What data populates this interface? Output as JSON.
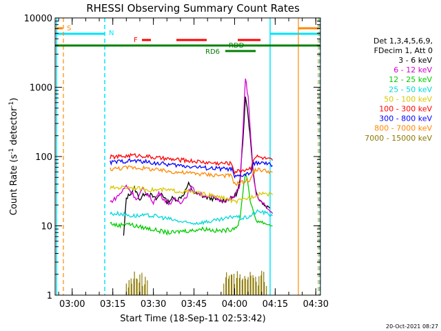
{
  "chart_data": {
    "type": "line",
    "title": "RHESSI Observing Summary Count Rates",
    "xlabel": "Start Time (18-Sep-11 02:53:42)",
    "ylabel_main": "Count Rate (s",
    "ylabel_sup1": "-1",
    "ylabel_mid": " detector",
    "ylabel_sup2": "-1",
    "ylabel_end": ")",
    "y_scale": "log",
    "ylim": [
      1,
      10000
    ],
    "xlim_minutes": [
      53.7,
      151.7
    ],
    "y_ticks": [
      {
        "value": 1,
        "label": "1"
      },
      {
        "value": 10,
        "label": "10"
      },
      {
        "value": 100,
        "label": "100"
      },
      {
        "value": 1000,
        "label": "1000"
      },
      {
        "value": 10000,
        "label": "10000"
      }
    ],
    "x_ticks": [
      {
        "minute": 60,
        "label": "03:00"
      },
      {
        "minute": 75,
        "label": "03:15"
      },
      {
        "minute": 90,
        "label": "03:30"
      },
      {
        "minute": 105,
        "label": "03:45"
      },
      {
        "minute": 120,
        "label": "04:00"
      },
      {
        "minute": 135,
        "label": "04:15"
      },
      {
        "minute": 150,
        "label": "04:30"
      }
    ],
    "legend_header": [
      "Det 1,3,4,5,6,9,",
      "FDecim 1, Att 0"
    ],
    "legend_position": "right",
    "series": [
      {
        "name": "3 - 6 keV",
        "color": "#000000",
        "x": [
          79,
          80,
          83,
          85,
          87,
          89,
          91,
          93,
          95,
          97,
          99,
          101,
          103,
          105,
          107,
          109,
          111,
          113,
          115,
          117,
          119,
          121,
          122,
          123,
          124,
          125,
          126,
          127,
          128,
          129,
          130,
          131,
          133
        ],
        "y": [
          7,
          25,
          35,
          24,
          30,
          28,
          24,
          30,
          22,
          25,
          24,
          28,
          40,
          30,
          28,
          26,
          25,
          24,
          23,
          24,
          25,
          30,
          45,
          150,
          780,
          400,
          150,
          55,
          30,
          25,
          22,
          20,
          18
        ]
      },
      {
        "name": "6 - 12 keV",
        "color": "#d400d4",
        "x": [
          74,
          76,
          78,
          80,
          82,
          84,
          86,
          88,
          90,
          92,
          94,
          96,
          98,
          100,
          102,
          104,
          106,
          108,
          110,
          112,
          114,
          116,
          118,
          120,
          122,
          123,
          124,
          125,
          126,
          127,
          128,
          130,
          132,
          134
        ],
        "y": [
          22,
          25,
          30,
          38,
          30,
          24,
          34,
          28,
          22,
          30,
          24,
          21,
          24,
          22,
          26,
          36,
          30,
          28,
          27,
          26,
          24,
          23,
          24,
          26,
          40,
          200,
          1400,
          700,
          180,
          50,
          28,
          22,
          18,
          15
        ]
      },
      {
        "name": "12 - 25 keV",
        "color": "#00cc00",
        "x": [
          74,
          77,
          80,
          83,
          86,
          89,
          92,
          95,
          98,
          101,
          104,
          107,
          110,
          113,
          116,
          119,
          121,
          122,
          123,
          124,
          125,
          126,
          128,
          131,
          134
        ],
        "y": [
          11,
          10,
          11,
          10,
          9.5,
          9,
          8.5,
          8,
          8,
          8.5,
          8.5,
          9,
          9,
          8.5,
          8.5,
          9,
          10,
          12,
          30,
          60,
          40,
          20,
          12,
          11,
          10
        ]
      },
      {
        "name": "25 - 50 keV",
        "color": "#00d8d8",
        "x": [
          74,
          78,
          82,
          86,
          90,
          94,
          98,
          102,
          106,
          110,
          114,
          118,
          120,
          122,
          124,
          126,
          128,
          130,
          132,
          134
        ],
        "y": [
          15,
          15,
          14,
          14,
          14,
          13,
          12,
          11,
          11,
          11.5,
          12,
          13,
          14,
          13,
          13,
          14,
          16,
          16,
          15,
          14
        ]
      },
      {
        "name": "50 - 100 keV",
        "color": "#d8c800",
        "x": [
          74,
          78,
          82,
          86,
          90,
          94,
          98,
          102,
          106,
          110,
          114,
          118,
          120,
          122,
          126,
          130,
          134
        ],
        "y": [
          35,
          36,
          36,
          34,
          33,
          33,
          32,
          31,
          30,
          28,
          26,
          24,
          22,
          23,
          26,
          30,
          28
        ]
      },
      {
        "name": "100 - 300 keV",
        "color": "#ff0000",
        "x": [
          74,
          78,
          82,
          86,
          90,
          94,
          98,
          102,
          106,
          110,
          114,
          118,
          119,
          120,
          124,
          126,
          127,
          128,
          132,
          134
        ],
        "y": [
          98,
          100,
          104,
          103,
          97,
          93,
          90,
          88,
          85,
          82,
          80,
          80,
          78,
          60,
          65,
          68,
          95,
          100,
          92,
          88
        ]
      },
      {
        "name": "300 - 800 keV",
        "color": "#0000ff",
        "x": [
          74,
          78,
          82,
          86,
          90,
          94,
          98,
          102,
          106,
          110,
          114,
          118,
          119,
          120,
          124,
          126,
          127,
          128,
          132,
          134
        ],
        "y": [
          82,
          85,
          87,
          85,
          81,
          78,
          75,
          73,
          71,
          68,
          67,
          66,
          65,
          50,
          55,
          58,
          78,
          82,
          78,
          74
        ]
      },
      {
        "name": "800 - 7000 keV",
        "color": "#ff8800",
        "x": [
          74,
          78,
          82,
          86,
          90,
          94,
          98,
          102,
          106,
          110,
          114,
          118,
          119,
          120,
          124,
          126,
          127,
          128,
          132,
          134
        ],
        "y": [
          66,
          68,
          70,
          68,
          65,
          62,
          60,
          58,
          57,
          55,
          54,
          53,
          52,
          40,
          44,
          47,
          62,
          65,
          62,
          59
        ]
      },
      {
        "name": "7000 - 15000 keV",
        "color": "#8c7800",
        "x": [
          80,
          81,
          82,
          83,
          84,
          85,
          86,
          87,
          116,
          117,
          118,
          119,
          120,
          121,
          122,
          123,
          124,
          125,
          126,
          127,
          128,
          129,
          130,
          131
        ],
        "y": [
          1.4,
          1.8,
          1.5,
          2,
          1.6,
          1.9,
          1.4,
          1.7,
          1.6,
          2,
          1.8,
          2,
          1.6,
          2,
          1.9,
          2,
          1.7,
          2,
          1.8,
          2,
          1.6,
          1.9,
          2,
          1.5
        ]
      }
    ],
    "flag_labels": {
      "saa": "S",
      "night": "N",
      "flare": "F",
      "rdd": "RDD",
      "rd6": "RD6"
    },
    "colors": {
      "saa": "#ff8800",
      "night": "#00e5ff",
      "flare": "#ff0000",
      "decimation": "#008000"
    },
    "footer_date": "20-Oct-2021 08:27"
  }
}
